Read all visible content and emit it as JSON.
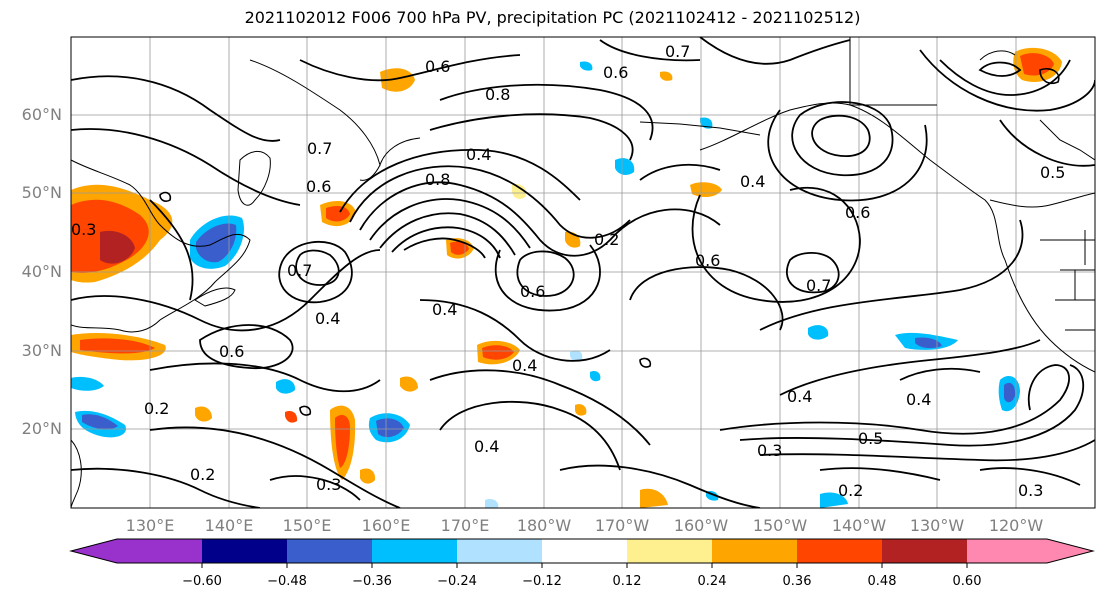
{
  "title": "2021102012 F006 700 hPa PV, precipitation PC (2021102412 - 2021102512)",
  "lat_labels": [
    "60°N",
    "50°N",
    "40°N",
    "30°N",
    "20°N"
  ],
  "lon_labels": [
    "130°E",
    "140°E",
    "150°E",
    "160°E",
    "170°E",
    "180°W",
    "170°W",
    "160°W",
    "150°W",
    "140°W",
    "130°W",
    "120°W"
  ],
  "colorbar": {
    "colors": [
      "#9932cc",
      "#00008b",
      "#3a5fcd",
      "#00bfff",
      "#b0e2ff",
      "#ffffff",
      "#fff08f",
      "#ffa500",
      "#ff4500",
      "#b22222",
      "#ff88b0"
    ],
    "ticks": [
      "−0.60",
      "−0.48",
      "−0.36",
      "−0.24",
      "−0.12",
      "0.12",
      "0.24",
      "0.36",
      "0.48",
      "0.60"
    ]
  },
  "contour_labels": [
    "0.6",
    "0.7",
    "0.4",
    "0.8",
    "0.6",
    "0.7",
    "0.4",
    "0.3",
    "0.6",
    "0.2",
    "0.6",
    "0.4",
    "0.6",
    "0.7",
    "0.4",
    "0.6",
    "0.4",
    "0.2",
    "0.4",
    "0.3",
    "0.4",
    "0.5",
    "0.3",
    "0.2",
    "0.3",
    "0.2",
    "0.7",
    "0.6",
    "0.4",
    "0.8",
    "0.5"
  ]
}
